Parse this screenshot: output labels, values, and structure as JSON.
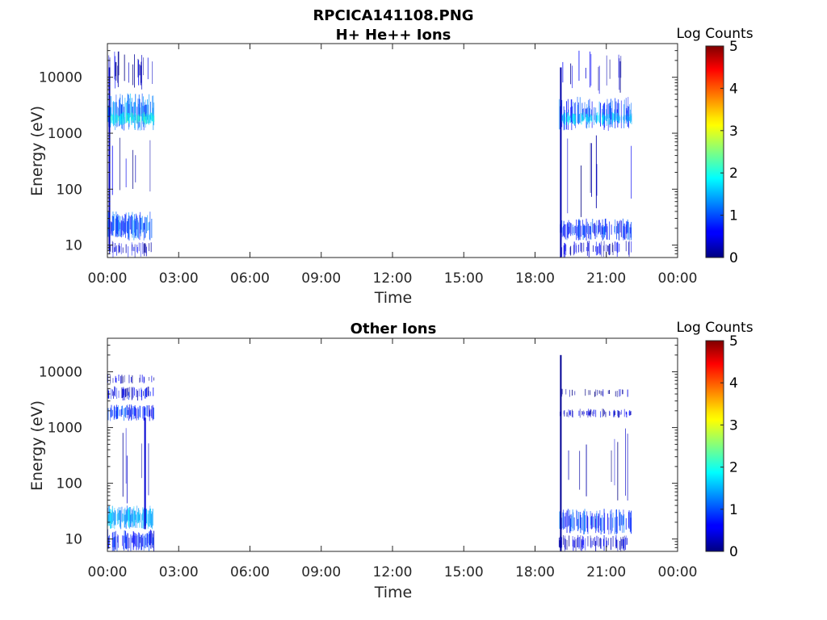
{
  "figure": {
    "title": "RPCICA141108.PNG"
  },
  "colors": {
    "axis": "#262626",
    "colormap": "jet"
  },
  "chart_data": [
    {
      "type": "heatmap",
      "title": "H+ He++ Ions",
      "xlabel": "Time",
      "ylabel": "Energy (eV)",
      "xticks": [
        "00:00",
        "03:00",
        "06:00",
        "09:00",
        "12:00",
        "15:00",
        "18:00",
        "21:00",
        "00:00"
      ],
      "xlim_hours": [
        0,
        24
      ],
      "yscale": "log",
      "ylim": [
        6,
        40000
      ],
      "yticks": [
        {
          "value": 10,
          "label": "10"
        },
        {
          "value": 100,
          "label": "100"
        },
        {
          "value": 1000,
          "label": "1000"
        },
        {
          "value": 10000,
          "label": "10000"
        }
      ],
      "colorbar": {
        "label": "Log Counts",
        "range": [
          0,
          5
        ],
        "ticks": [
          "0",
          "1",
          "2",
          "3",
          "4",
          "5"
        ]
      },
      "bands": [
        {
          "t": [
            0.0,
            1.95
          ],
          "e": [
            1100,
            5200
          ],
          "level": 1.2,
          "density": 0.7
        },
        {
          "t": [
            0.1,
            1.95
          ],
          "e": [
            1400,
            2400
          ],
          "level": 1.9,
          "density": 0.8
        },
        {
          "t": [
            0.0,
            1.95
          ],
          "e": [
            12,
            40
          ],
          "level": 1.0,
          "density": 0.8
        },
        {
          "t": [
            0.0,
            1.95
          ],
          "e": [
            6,
            12
          ],
          "level": 0.4,
          "density": 0.4
        },
        {
          "t": [
            0.0,
            1.95
          ],
          "e": [
            6000,
            30000
          ],
          "level": 0.3,
          "density": 0.15
        },
        {
          "t": [
            0.0,
            1.95
          ],
          "e": [
            40,
            1000
          ],
          "level": 0.2,
          "density": 0.06
        },
        {
          "t": [
            19.0,
            22.05
          ],
          "e": [
            1100,
            4500
          ],
          "level": 1.0,
          "density": 0.55
        },
        {
          "t": [
            19.1,
            22.05
          ],
          "e": [
            1400,
            2400
          ],
          "level": 1.6,
          "density": 0.6
        },
        {
          "t": [
            19.0,
            22.05
          ],
          "e": [
            12,
            30
          ],
          "level": 0.8,
          "density": 0.6
        },
        {
          "t": [
            19.0,
            22.05
          ],
          "e": [
            6,
            12
          ],
          "level": 0.4,
          "density": 0.4
        },
        {
          "t": [
            19.0,
            22.05
          ],
          "e": [
            5000,
            30000
          ],
          "level": 0.3,
          "density": 0.12
        },
        {
          "t": [
            19.0,
            22.05
          ],
          "e": [
            30,
            1000
          ],
          "level": 0.2,
          "density": 0.06
        }
      ],
      "spikes": [
        {
          "t": 0.05,
          "e": [
            8,
            15000
          ],
          "level": 0.3
        },
        {
          "t": 19.05,
          "e": [
            6,
            15000
          ],
          "level": 0.2
        }
      ]
    },
    {
      "type": "heatmap",
      "title": "Other Ions",
      "xlabel": "Time",
      "ylabel": "Energy (eV)",
      "xticks": [
        "00:00",
        "03:00",
        "06:00",
        "09:00",
        "12:00",
        "15:00",
        "18:00",
        "21:00",
        "00:00"
      ],
      "xlim_hours": [
        0,
        24
      ],
      "yscale": "log",
      "ylim": [
        6,
        40000
      ],
      "yticks": [
        {
          "value": 10,
          "label": "10"
        },
        {
          "value": 100,
          "label": "100"
        },
        {
          "value": 1000,
          "label": "1000"
        },
        {
          "value": 10000,
          "label": "10000"
        }
      ],
      "colorbar": {
        "label": "Log Counts",
        "range": [
          0,
          5
        ],
        "ticks": [
          "0",
          "1",
          "2",
          "3",
          "4",
          "5"
        ]
      },
      "bands": [
        {
          "t": [
            0.0,
            1.95
          ],
          "e": [
            1300,
            2600
          ],
          "level": 0.8,
          "density": 0.6
        },
        {
          "t": [
            0.0,
            1.95
          ],
          "e": [
            3000,
            5500
          ],
          "level": 0.5,
          "density": 0.5
        },
        {
          "t": [
            0.0,
            1.95
          ],
          "e": [
            6000,
            9000
          ],
          "level": 0.3,
          "density": 0.3
        },
        {
          "t": [
            0.0,
            1.95
          ],
          "e": [
            15,
            40
          ],
          "level": 1.4,
          "density": 0.85
        },
        {
          "t": [
            0.0,
            1.95
          ],
          "e": [
            6,
            15
          ],
          "level": 0.7,
          "density": 0.6
        },
        {
          "t": [
            0.0,
            1.95
          ],
          "e": [
            40,
            1000
          ],
          "level": 0.2,
          "density": 0.08
        },
        {
          "t": [
            19.0,
            22.05
          ],
          "e": [
            1500,
            2200
          ],
          "level": 0.4,
          "density": 0.4
        },
        {
          "t": [
            19.0,
            22.05
          ],
          "e": [
            3500,
            5000
          ],
          "level": 0.2,
          "density": 0.2
        },
        {
          "t": [
            19.0,
            22.05
          ],
          "e": [
            12,
            35
          ],
          "level": 0.9,
          "density": 0.6
        },
        {
          "t": [
            19.0,
            22.05
          ],
          "e": [
            6,
            12
          ],
          "level": 0.4,
          "density": 0.4
        },
        {
          "t": [
            19.0,
            22.05
          ],
          "e": [
            40,
            1000
          ],
          "level": 0.15,
          "density": 0.06
        }
      ],
      "spikes": [
        {
          "t": 1.55,
          "e": [
            15,
            1500
          ],
          "level": 0.4
        },
        {
          "t": 19.05,
          "e": [
            6,
            20000
          ],
          "level": 0.1
        }
      ]
    }
  ]
}
